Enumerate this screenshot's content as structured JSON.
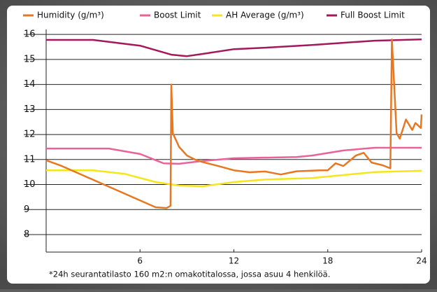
{
  "chart_data": {
    "type": "line",
    "xlim": [
      0,
      24
    ],
    "xticks": [
      6,
      12,
      18,
      24
    ],
    "ylim": [
      7.3,
      16.2
    ],
    "yticks": [
      8,
      9,
      10,
      11,
      12,
      13,
      14,
      15,
      16
    ],
    "grid": true,
    "footnote": "*24h seurantatilasto 160 m2:n omakotitalossa, jossa asuu 4 henkilöä.",
    "series": [
      {
        "name": "Humidity (g/m³)",
        "color": "#e87722",
        "x": [
          0,
          1,
          7,
          7.7,
          7.95,
          8.0,
          8.1,
          8.5,
          9,
          9.5,
          10,
          11,
          12,
          13,
          14,
          15,
          16,
          17.5,
          18,
          18.5,
          19,
          19.8,
          20.3,
          20.8,
          21.5,
          22,
          22.1,
          22.4,
          22.6,
          23,
          23.4,
          23.6,
          23.95,
          24
        ],
        "values": [
          10.97,
          10.74,
          9.09,
          9.06,
          9.15,
          14.0,
          12.05,
          11.5,
          11.16,
          11.0,
          10.9,
          10.74,
          10.57,
          10.49,
          10.52,
          10.4,
          10.53,
          10.57,
          10.57,
          10.85,
          10.74,
          11.16,
          11.27,
          10.88,
          10.77,
          10.65,
          15.8,
          12.05,
          11.83,
          12.6,
          12.18,
          12.46,
          12.26,
          12.8
        ]
      },
      {
        "name": "Boost Limit",
        "color": "#e8639a",
        "x": [
          0,
          4,
          6,
          7.5,
          8.5,
          10,
          12,
          16,
          17,
          19,
          21,
          24
        ],
        "values": [
          11.44,
          11.44,
          11.22,
          10.85,
          10.83,
          10.94,
          11.05,
          11.1,
          11.16,
          11.36,
          11.47,
          11.47
        ]
      },
      {
        "name": "AH Average (g/m³)",
        "color": "#f5e51b",
        "x": [
          0,
          3,
          5,
          7,
          8.5,
          10,
          12,
          14,
          17,
          19,
          21,
          24
        ],
        "values": [
          10.57,
          10.57,
          10.43,
          10.1,
          9.96,
          9.93,
          10.1,
          10.2,
          10.26,
          10.38,
          10.5,
          10.55
        ]
      },
      {
        "name": "Full Boost Limit",
        "color": "#a3195b",
        "x": [
          0,
          3,
          6,
          8,
          9,
          10,
          12,
          14,
          17,
          21,
          24
        ],
        "values": [
          15.78,
          15.78,
          15.55,
          15.19,
          15.13,
          15.22,
          15.41,
          15.47,
          15.58,
          15.75,
          15.8
        ]
      }
    ]
  }
}
